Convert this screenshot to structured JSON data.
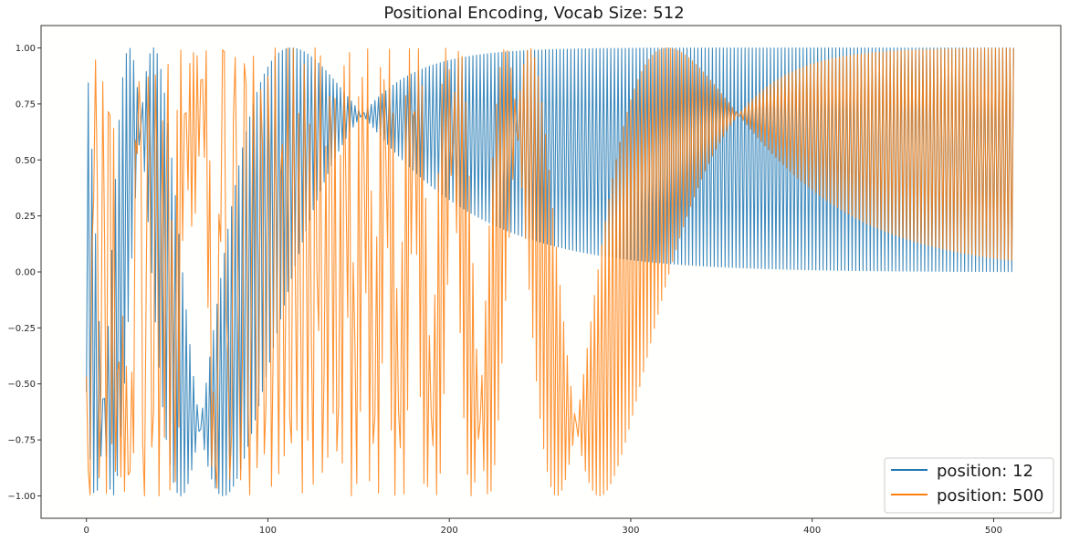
{
  "chart_data": {
    "type": "line",
    "title": "Positional Encoding, Vocab Size: 512",
    "xlabel": "",
    "ylabel": "",
    "xlim": [
      -25,
      537
    ],
    "ylim": [
      -1.1,
      1.1
    ],
    "x_ticks": [
      0,
      100,
      200,
      300,
      400,
      500
    ],
    "y_ticks": [
      -1.0,
      -0.75,
      -0.5,
      -0.25,
      0.0,
      0.25,
      0.5,
      0.75,
      1.0
    ],
    "y_tick_labels": [
      "−1.00",
      "−0.75",
      "−0.50",
      "−0.25",
      "0.00",
      "0.25",
      "0.50",
      "0.75",
      "1.00"
    ],
    "grid": false,
    "legend_position": "bottom-right",
    "dimensions": {
      "from": 0,
      "to": 511,
      "step": 1
    },
    "series": [
      {
        "name": "position: 12",
        "color": "#1f77b4",
        "position": 12,
        "d_model": 512
      },
      {
        "name": "position: 500",
        "color": "#ff7f0e",
        "position": 500,
        "d_model": 512
      }
    ]
  }
}
